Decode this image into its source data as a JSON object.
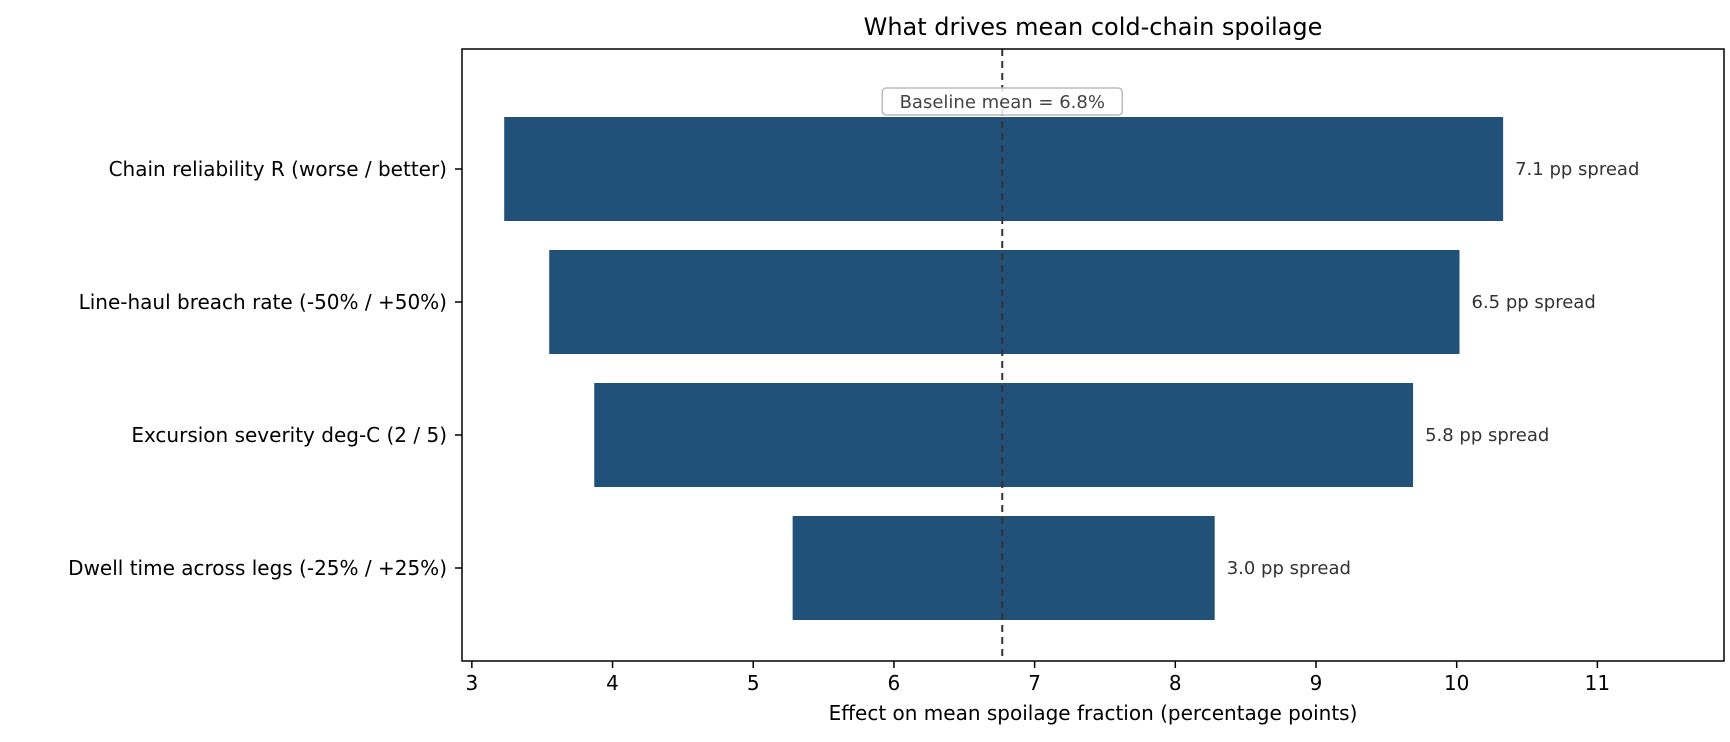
{
  "chart_data": {
    "type": "bar",
    "orientation": "horizontal",
    "subtype": "tornado",
    "title": "What drives mean cold-chain spoilage",
    "xlabel": "Effect on mean spoilage fraction  (percentage points)",
    "ylabel": "",
    "xlim": [
      2.93,
      11.9
    ],
    "xticks": [
      3,
      4,
      5,
      6,
      7,
      8,
      9,
      10,
      11
    ],
    "grid": false,
    "baseline": {
      "value": 6.77,
      "label": "Baseline mean = 6.8%"
    },
    "bar_color": "#215078",
    "categories": [
      "Chain reliability R  (worse / better)",
      "Line-haul breach rate  (-50% / +50%)",
      "Excursion severity deg-C  (2 / 5)",
      "Dwell time across legs  (-25% / +25%)"
    ],
    "bars": [
      {
        "low": 3.23,
        "high": 10.33,
        "label": "7.1 pp spread"
      },
      {
        "low": 3.55,
        "high": 10.02,
        "label": "6.5 pp spread"
      },
      {
        "low": 3.87,
        "high": 9.69,
        "label": "5.8 pp spread"
      },
      {
        "low": 5.28,
        "high": 8.28,
        "label": "3.0 pp spread"
      }
    ]
  }
}
